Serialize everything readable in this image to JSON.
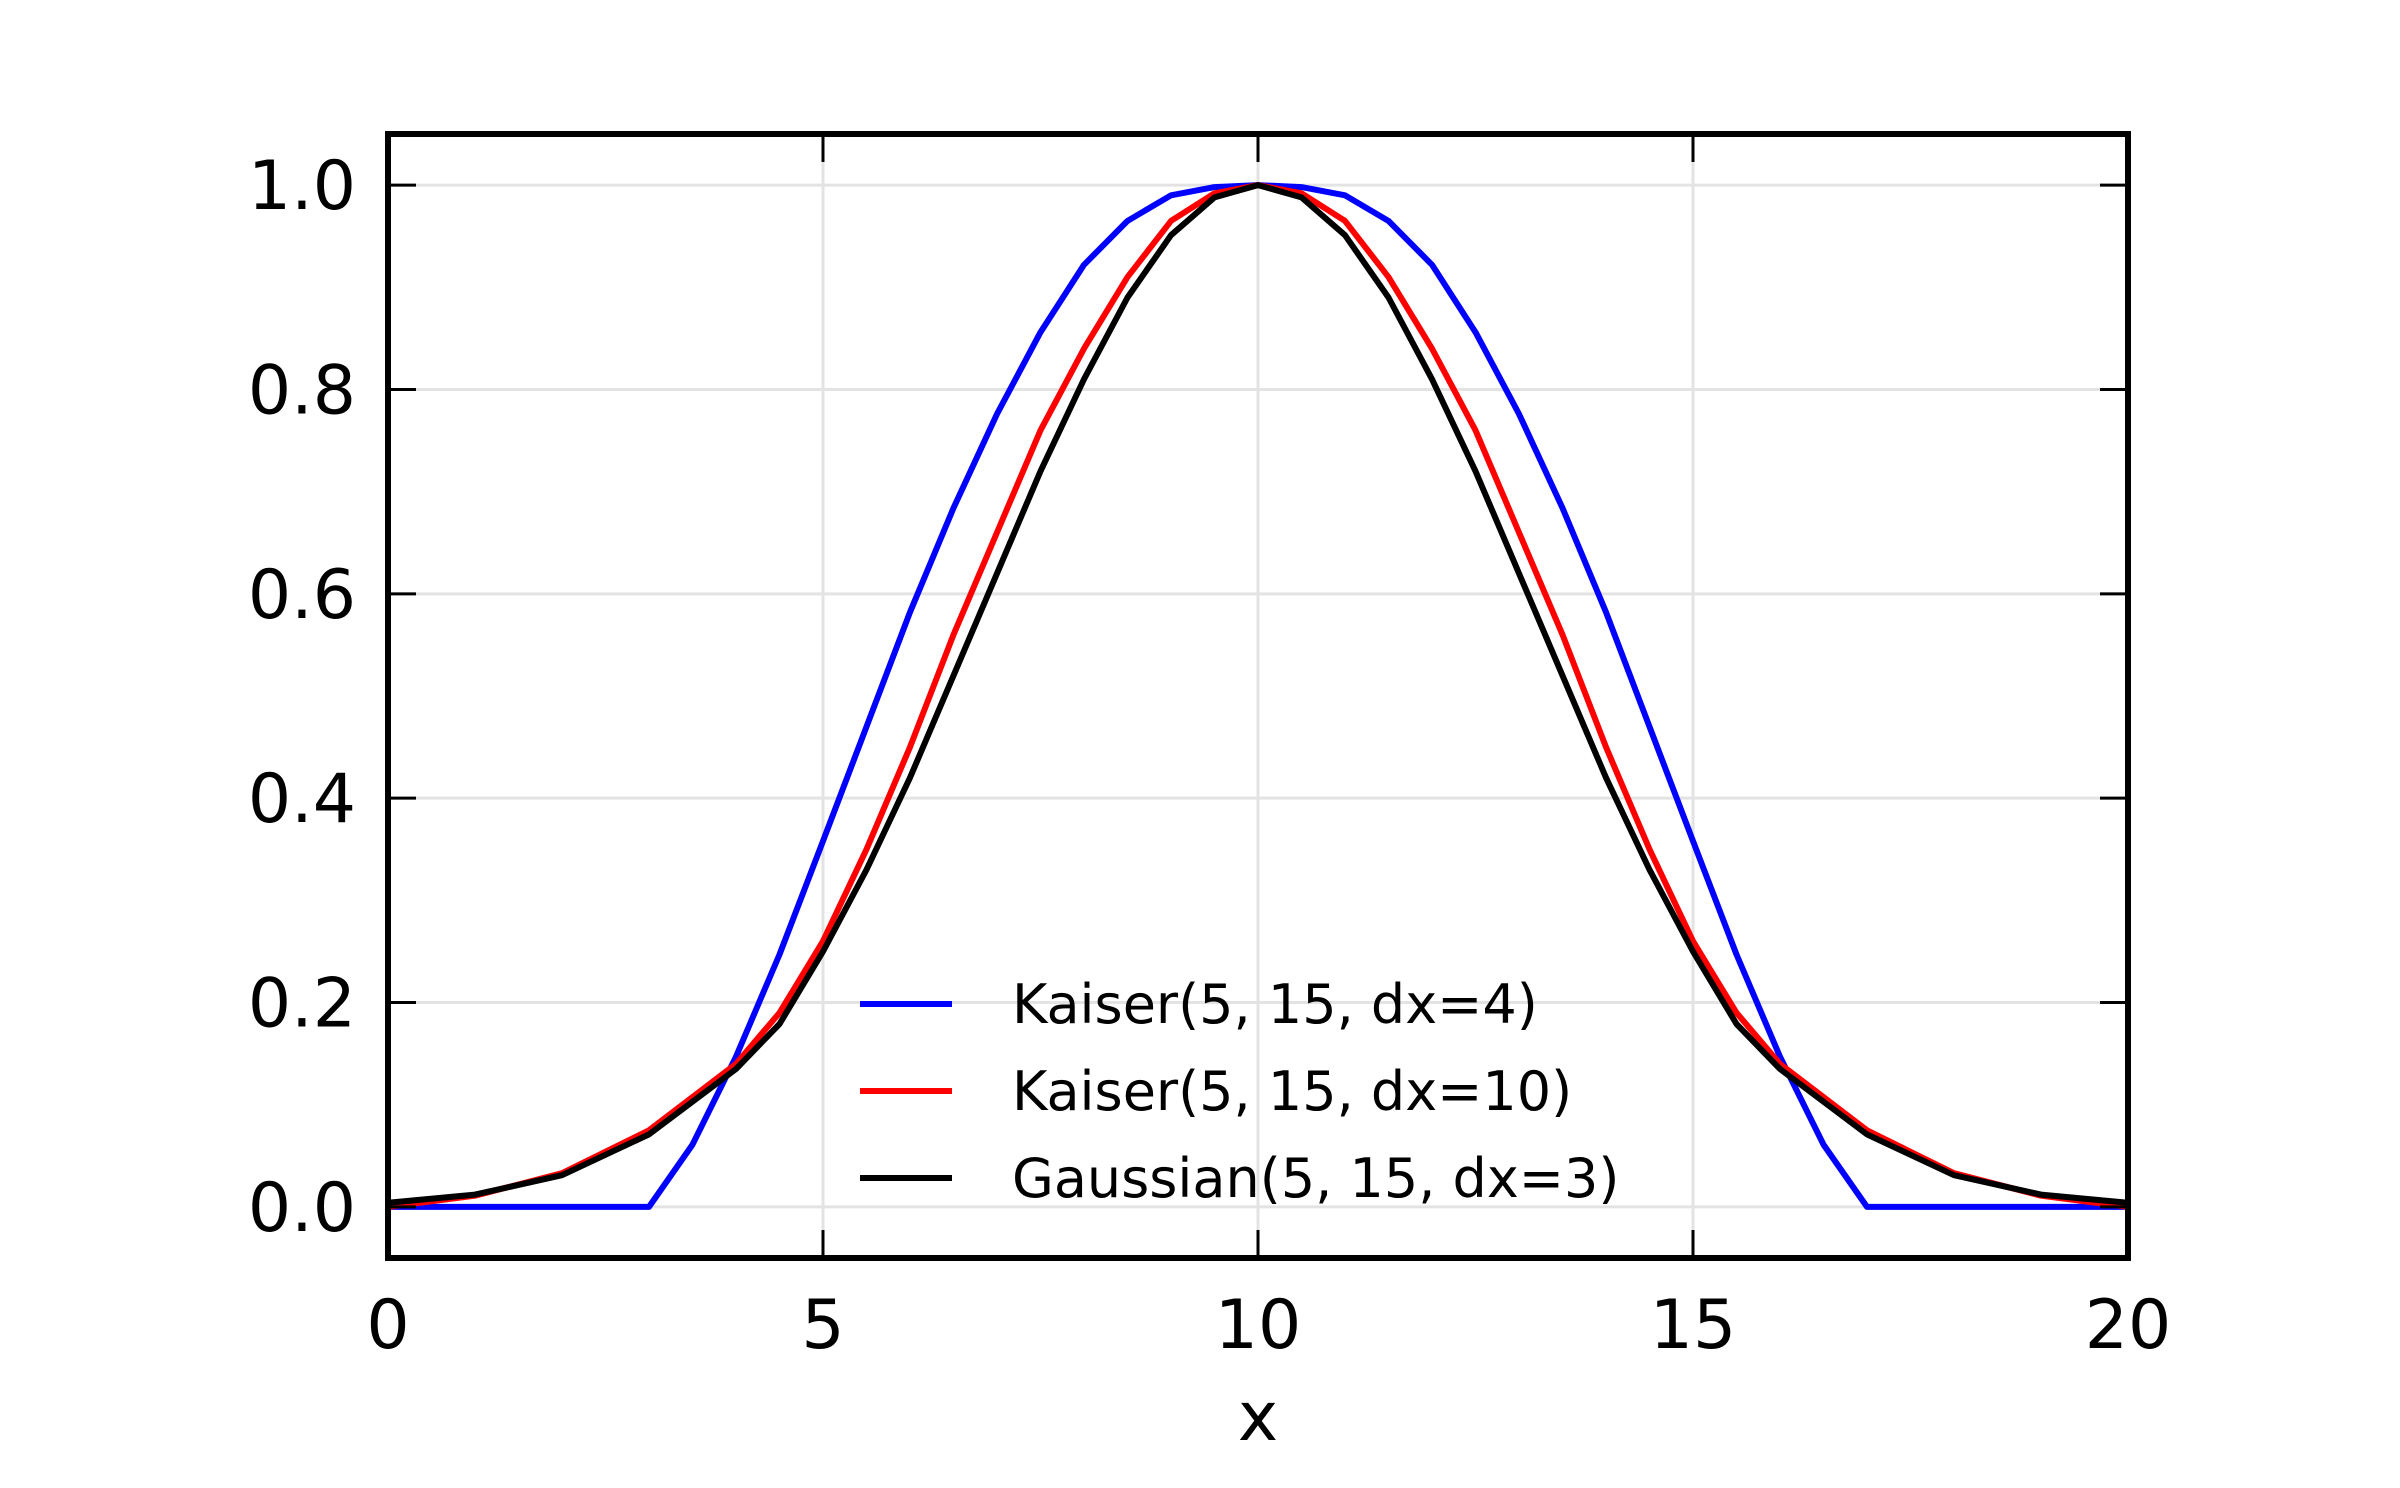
{
  "chart_data": {
    "type": "line",
    "title": "",
    "xlabel": "x",
    "ylabel": "",
    "xlim": [
      0,
      20
    ],
    "ylim": [
      -0.05,
      1.05
    ],
    "xticks": [
      0,
      5,
      10,
      15,
      20
    ],
    "xtick_labels": [
      "0",
      "5",
      "10",
      "15",
      "20"
    ],
    "yticks": [
      0.0,
      0.2,
      0.4,
      0.6,
      0.8,
      1.0
    ],
    "ytick_labels": [
      "0.0",
      "0.2",
      "0.4",
      "0.6",
      "0.8",
      "1.0"
    ],
    "grid": true,
    "legend_position": "lower-center",
    "series": [
      {
        "name": "Kaiser(5, 15, dx=4)",
        "color": "#0000ff",
        "x": [
          0,
          1,
          2,
          3,
          3.5,
          4,
          4.5,
          5,
          5.5,
          6,
          6.5,
          7,
          7.5,
          8,
          8.5,
          9,
          9.5,
          10,
          10.5,
          11,
          11.5,
          12,
          12.5,
          13,
          13.5,
          14,
          14.5,
          15,
          15.5,
          16,
          16.5,
          17,
          18,
          19,
          20
        ],
        "values": [
          0,
          0,
          0,
          0,
          0.061,
          0.147,
          0.247,
          0.358,
          0.47,
          0.582,
          0.684,
          0.776,
          0.856,
          0.922,
          0.965,
          0.99,
          0.998,
          1.0,
          0.998,
          0.99,
          0.965,
          0.922,
          0.856,
          0.776,
          0.684,
          0.582,
          0.47,
          0.358,
          0.247,
          0.147,
          0.061,
          0,
          0,
          0,
          0
        ]
      },
      {
        "name": "Kaiser(5, 15, dx=10)",
        "color": "#ff0000",
        "x": [
          0,
          1,
          2,
          3,
          4,
          4.5,
          5,
          5.5,
          6,
          6.5,
          7,
          7.5,
          8,
          8.5,
          9,
          9.5,
          10,
          10.5,
          11,
          11.5,
          12,
          12.5,
          13,
          13.5,
          14,
          14.5,
          15,
          15.5,
          16,
          17,
          18,
          19,
          20
        ],
        "values": [
          0,
          0.011,
          0.033,
          0.075,
          0.14,
          0.19,
          0.26,
          0.35,
          0.45,
          0.56,
          0.66,
          0.76,
          0.84,
          0.91,
          0.965,
          0.992,
          1.0,
          0.992,
          0.965,
          0.91,
          0.84,
          0.76,
          0.66,
          0.56,
          0.45,
          0.35,
          0.26,
          0.19,
          0.14,
          0.075,
          0.033,
          0.011,
          0
        ]
      },
      {
        "name": "Gaussian(5, 15, dx=3)",
        "color": "#000000",
        "x": [
          0,
          1,
          2,
          3,
          4,
          4.5,
          5,
          5.5,
          6,
          6.5,
          7,
          7.5,
          8,
          8.5,
          9,
          9.5,
          10,
          10.5,
          11,
          11.5,
          12,
          12.5,
          13,
          13.5,
          14,
          14.5,
          15,
          15.5,
          16,
          17,
          18,
          19,
          20
        ],
        "values": [
          0.004,
          0.012,
          0.031,
          0.071,
          0.135,
          0.179,
          0.25,
          0.33,
          0.42,
          0.52,
          0.62,
          0.72,
          0.81,
          0.89,
          0.951,
          0.988,
          1.0,
          0.988,
          0.951,
          0.89,
          0.81,
          0.72,
          0.62,
          0.52,
          0.42,
          0.33,
          0.25,
          0.179,
          0.135,
          0.071,
          0.031,
          0.012,
          0.004
        ]
      }
    ]
  }
}
